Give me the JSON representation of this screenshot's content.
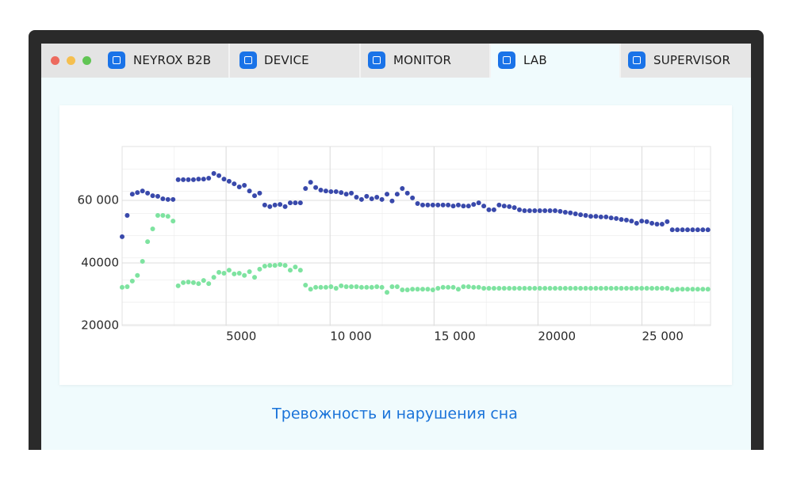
{
  "tabs": [
    "NEYROX B2B",
    "DEVICE",
    "MONITOR",
    "LAB",
    "SUPERVISOR"
  ],
  "chart_data": {
    "type": "scatter",
    "title": "Тревожность и нарушения сна",
    "x": [
      0,
      245,
      490,
      735,
      980,
      1225,
      1470,
      1715,
      1960,
      2205,
      2450,
      2695,
      2940,
      3185,
      3430,
      3675,
      3920,
      4165,
      4410,
      4655,
      4900,
      5145,
      5390,
      5635,
      5880,
      6125,
      6370,
      6615,
      6860,
      7105,
      7350,
      7595,
      7840,
      8085,
      8330,
      8575,
      8820,
      9065,
      9310,
      9555,
      9800,
      10045,
      10290,
      10535,
      10780,
      11025,
      11270,
      11515,
      11760,
      12005,
      12250,
      12495,
      12740,
      12985,
      13230,
      13475,
      13720,
      13965,
      14210,
      14455,
      14700,
      14945,
      15190,
      15435,
      15680,
      15925,
      16170,
      16415,
      16660,
      16905,
      17150,
      17395,
      17640,
      17885,
      18130,
      18375,
      18620,
      18865,
      19110,
      19355,
      19600,
      19845,
      20090,
      20335,
      20580,
      20825,
      21070,
      21315,
      21560,
      21805,
      22050,
      22295,
      22540,
      22785,
      23030,
      23275,
      23520,
      23765,
      24010,
      24255,
      24500,
      24745,
      24990,
      25235,
      25480,
      25725,
      25970,
      26215,
      26460,
      26705,
      26950,
      27195,
      27440,
      27685,
      27930,
      28175
    ],
    "series": [
      {
        "color": "#3949ab",
        "values": [
          48400,
          55200,
          62000,
          62500,
          63000,
          62300,
          61500,
          61300,
          60500,
          60300,
          60300,
          66600,
          66600,
          66600,
          66600,
          66800,
          66800,
          67100,
          68600,
          67900,
          66800,
          66100,
          65300,
          64300,
          64800,
          63000,
          61500,
          62300,
          58500,
          58000,
          58500,
          58700,
          58000,
          59200,
          59200,
          59200,
          63800,
          65800,
          64100,
          63300,
          63000,
          62800,
          62800,
          62500,
          62000,
          62300,
          61000,
          60300,
          61300,
          60500,
          61000,
          60300,
          62000,
          59800,
          62000,
          63800,
          62300,
          60800,
          59000,
          58500,
          58500,
          58500,
          58500,
          58500,
          58500,
          58200,
          58500,
          58200,
          58200,
          58700,
          59200,
          58200,
          57000,
          57000,
          58500,
          58200,
          58000,
          57700,
          57000,
          56700,
          56700,
          56700,
          56700,
          56700,
          56700,
          56700,
          56500,
          56200,
          56000,
          55700,
          55400,
          55200,
          54900,
          54900,
          54700,
          54700,
          54400,
          54200,
          53900,
          53700,
          53400,
          52700,
          53400,
          53200,
          52700,
          52400,
          52400,
          53200,
          50600,
          50600,
          50600,
          50600,
          50600,
          50600,
          50600,
          50600
        ]
      },
      {
        "color": "#7ee3a0",
        "values": [
          32200,
          32400,
          34200,
          36000,
          40500,
          46800,
          50900,
          55200,
          55200,
          54900,
          53400,
          32700,
          33700,
          33900,
          33700,
          33400,
          34400,
          33400,
          35400,
          37000,
          36700,
          37700,
          36500,
          36700,
          36000,
          37200,
          35400,
          38000,
          39000,
          39200,
          39200,
          39500,
          39200,
          37700,
          38700,
          37700,
          32900,
          31600,
          32200,
          32200,
          32200,
          32400,
          31900,
          32700,
          32400,
          32400,
          32400,
          32200,
          32200,
          32200,
          32400,
          32200,
          30600,
          32400,
          32400,
          31400,
          31400,
          31600,
          31600,
          31600,
          31600,
          31400,
          31900,
          32200,
          32200,
          32200,
          31600,
          32400,
          32400,
          32200,
          32200,
          31900,
          31900,
          31900,
          31900,
          31900,
          31900,
          31900,
          31900,
          31900,
          31900,
          31900,
          31900,
          31900,
          31900,
          31900,
          31900,
          31900,
          31900,
          31900,
          31900,
          31900,
          31900,
          31900,
          31900,
          31900,
          31900,
          31900,
          31900,
          31900,
          31900,
          31900,
          31900,
          31900,
          31900,
          31900,
          31900,
          31900,
          31400,
          31600,
          31600,
          31600,
          31600,
          31600,
          31600,
          31600
        ]
      }
    ],
    "xlim": [
      0,
      28300
    ],
    "xticks": [
      5000,
      {
        "value": 10000,
        "label": "10 000"
      },
      {
        "value": 15000,
        "label": "15 000"
      },
      20000,
      {
        "value": 25000,
        "label": "25 000"
      }
    ],
    "ylim": [
      20000,
      76000
    ],
    "yticks": [
      20000,
      40000,
      {
        "value": 60000,
        "label": "60 000"
      }
    ],
    "grid": true
  }
}
